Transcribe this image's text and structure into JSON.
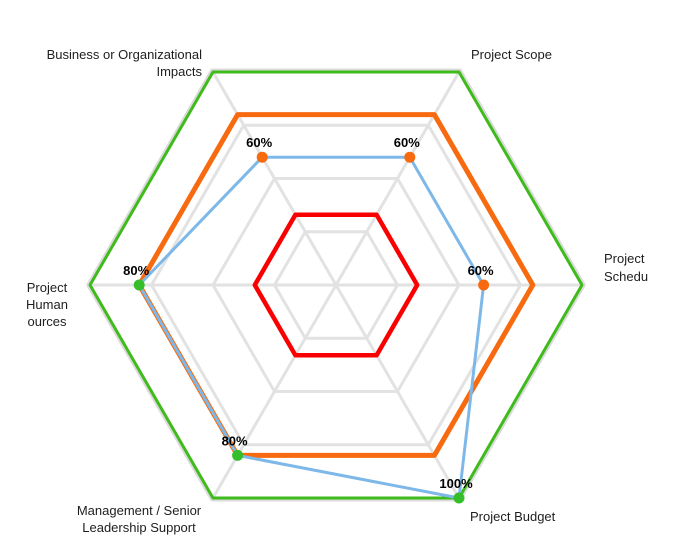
{
  "chart_data": {
    "type": "radar",
    "unit": "%",
    "axis_range": [
      0,
      100
    ],
    "grid": {
      "ring_values": [
        25,
        50,
        75,
        100
      ],
      "color": "#E2E2E2",
      "outer_ring_color": "#DBDBDB",
      "spokes": true
    },
    "categories": [
      "Project Scope",
      "Project Schedu",
      "Project Budget",
      "Management / Senior Leadership Support",
      "Project Human ources",
      "Business or Organizational Impacts"
    ],
    "axis_display_lines": [
      [
        "Project Scope"
      ],
      [
        "Project",
        "Schedu"
      ],
      [
        "Project Budget"
      ],
      [
        "Management / Senior",
        "Leadership Support"
      ],
      [
        "Project",
        "Human",
        "ources"
      ],
      [
        "Business or Organizational",
        "Impacts"
      ]
    ],
    "series": [
      {
        "name": "green-threshold-ring",
        "color": "#3FBB1C",
        "values": [
          100,
          100,
          100,
          100,
          100,
          100
        ]
      },
      {
        "name": "orange-threshold-ring",
        "color": "#F76A0F",
        "values": [
          80,
          80,
          80,
          80,
          80,
          80
        ]
      },
      {
        "name": "red-threshold-ring",
        "color": "#FA0000",
        "values": [
          33,
          33,
          33,
          33,
          33,
          33
        ]
      },
      {
        "name": "actual",
        "color": "#7DB8E8",
        "values": [
          60,
          60,
          100,
          80,
          80,
          60
        ],
        "data_labels": [
          "60%",
          "60%",
          "100%",
          "80%",
          "80%",
          "60%"
        ],
        "marker_colors": [
          "#F76A0F",
          "#F76A0F",
          "#35BE2A",
          "#35BE2A",
          "#35BE2A",
          "#F76A0F"
        ]
      }
    ]
  }
}
